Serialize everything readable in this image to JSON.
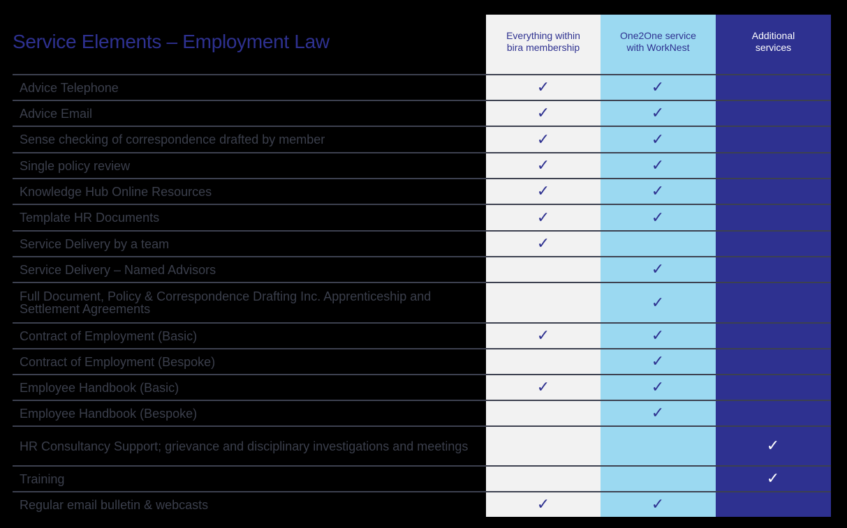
{
  "title": "Service Elements – Employment Law",
  "columns": [
    {
      "label_line1": "Everything within",
      "label_line2": "bira membership"
    },
    {
      "label_line1": "One2One service",
      "label_line2": "with WorkNest"
    },
    {
      "label_line1": "Additional",
      "label_line2": "services"
    }
  ],
  "check_glyph": "✓",
  "colors": {
    "title": "#2e3190",
    "col1_bg": "#f2f2f2",
    "col2_bg": "#9bd9f1",
    "col3_bg": "#2e3190"
  },
  "rows": [
    {
      "label": "Advice Telephone",
      "c1": "✓",
      "c2": "✓",
      "c3": ""
    },
    {
      "label": "Advice Email",
      "c1": "✓",
      "c2": "✓",
      "c3": ""
    },
    {
      "label": "Sense checking of correspondence drafted by member",
      "c1": "✓",
      "c2": "✓",
      "c3": ""
    },
    {
      "label": "Single policy review",
      "c1": "✓",
      "c2": "✓",
      "c3": ""
    },
    {
      "label": "Knowledge Hub Online Resources",
      "c1": "✓",
      "c2": "✓",
      "c3": ""
    },
    {
      "label": "Template HR Documents",
      "c1": "✓",
      "c2": "✓",
      "c3": ""
    },
    {
      "label": "Service Delivery by a team",
      "c1": "✓",
      "c2": "",
      "c3": ""
    },
    {
      "label": "Service Delivery – Named Advisors",
      "c1": "",
      "c2": "✓",
      "c3": ""
    },
    {
      "label": "Full Document, Policy & Correspondence Drafting Inc. Apprenticeship and Settlement Agreements",
      "c1": "",
      "c2": "✓",
      "c3": ""
    },
    {
      "label": "Contract of Employment (Basic)",
      "c1": "✓",
      "c2": "✓",
      "c3": ""
    },
    {
      "label": "Contract of Employment (Bespoke)",
      "c1": "",
      "c2": "✓",
      "c3": ""
    },
    {
      "label": "Employee Handbook (Basic)",
      "c1": "✓",
      "c2": "✓",
      "c3": ""
    },
    {
      "label": "Employee Handbook (Bespoke)",
      "c1": "",
      "c2": "✓",
      "c3": ""
    },
    {
      "label": "HR Consultancy Support; grievance and disciplinary investigations and meetings",
      "c1": "",
      "c2": "",
      "c3": "✓"
    },
    {
      "label": "Training",
      "c1": "",
      "c2": "",
      "c3": "✓"
    },
    {
      "label": "Regular email bulletin & webcasts",
      "c1": "✓",
      "c2": "✓",
      "c3": ""
    }
  ]
}
